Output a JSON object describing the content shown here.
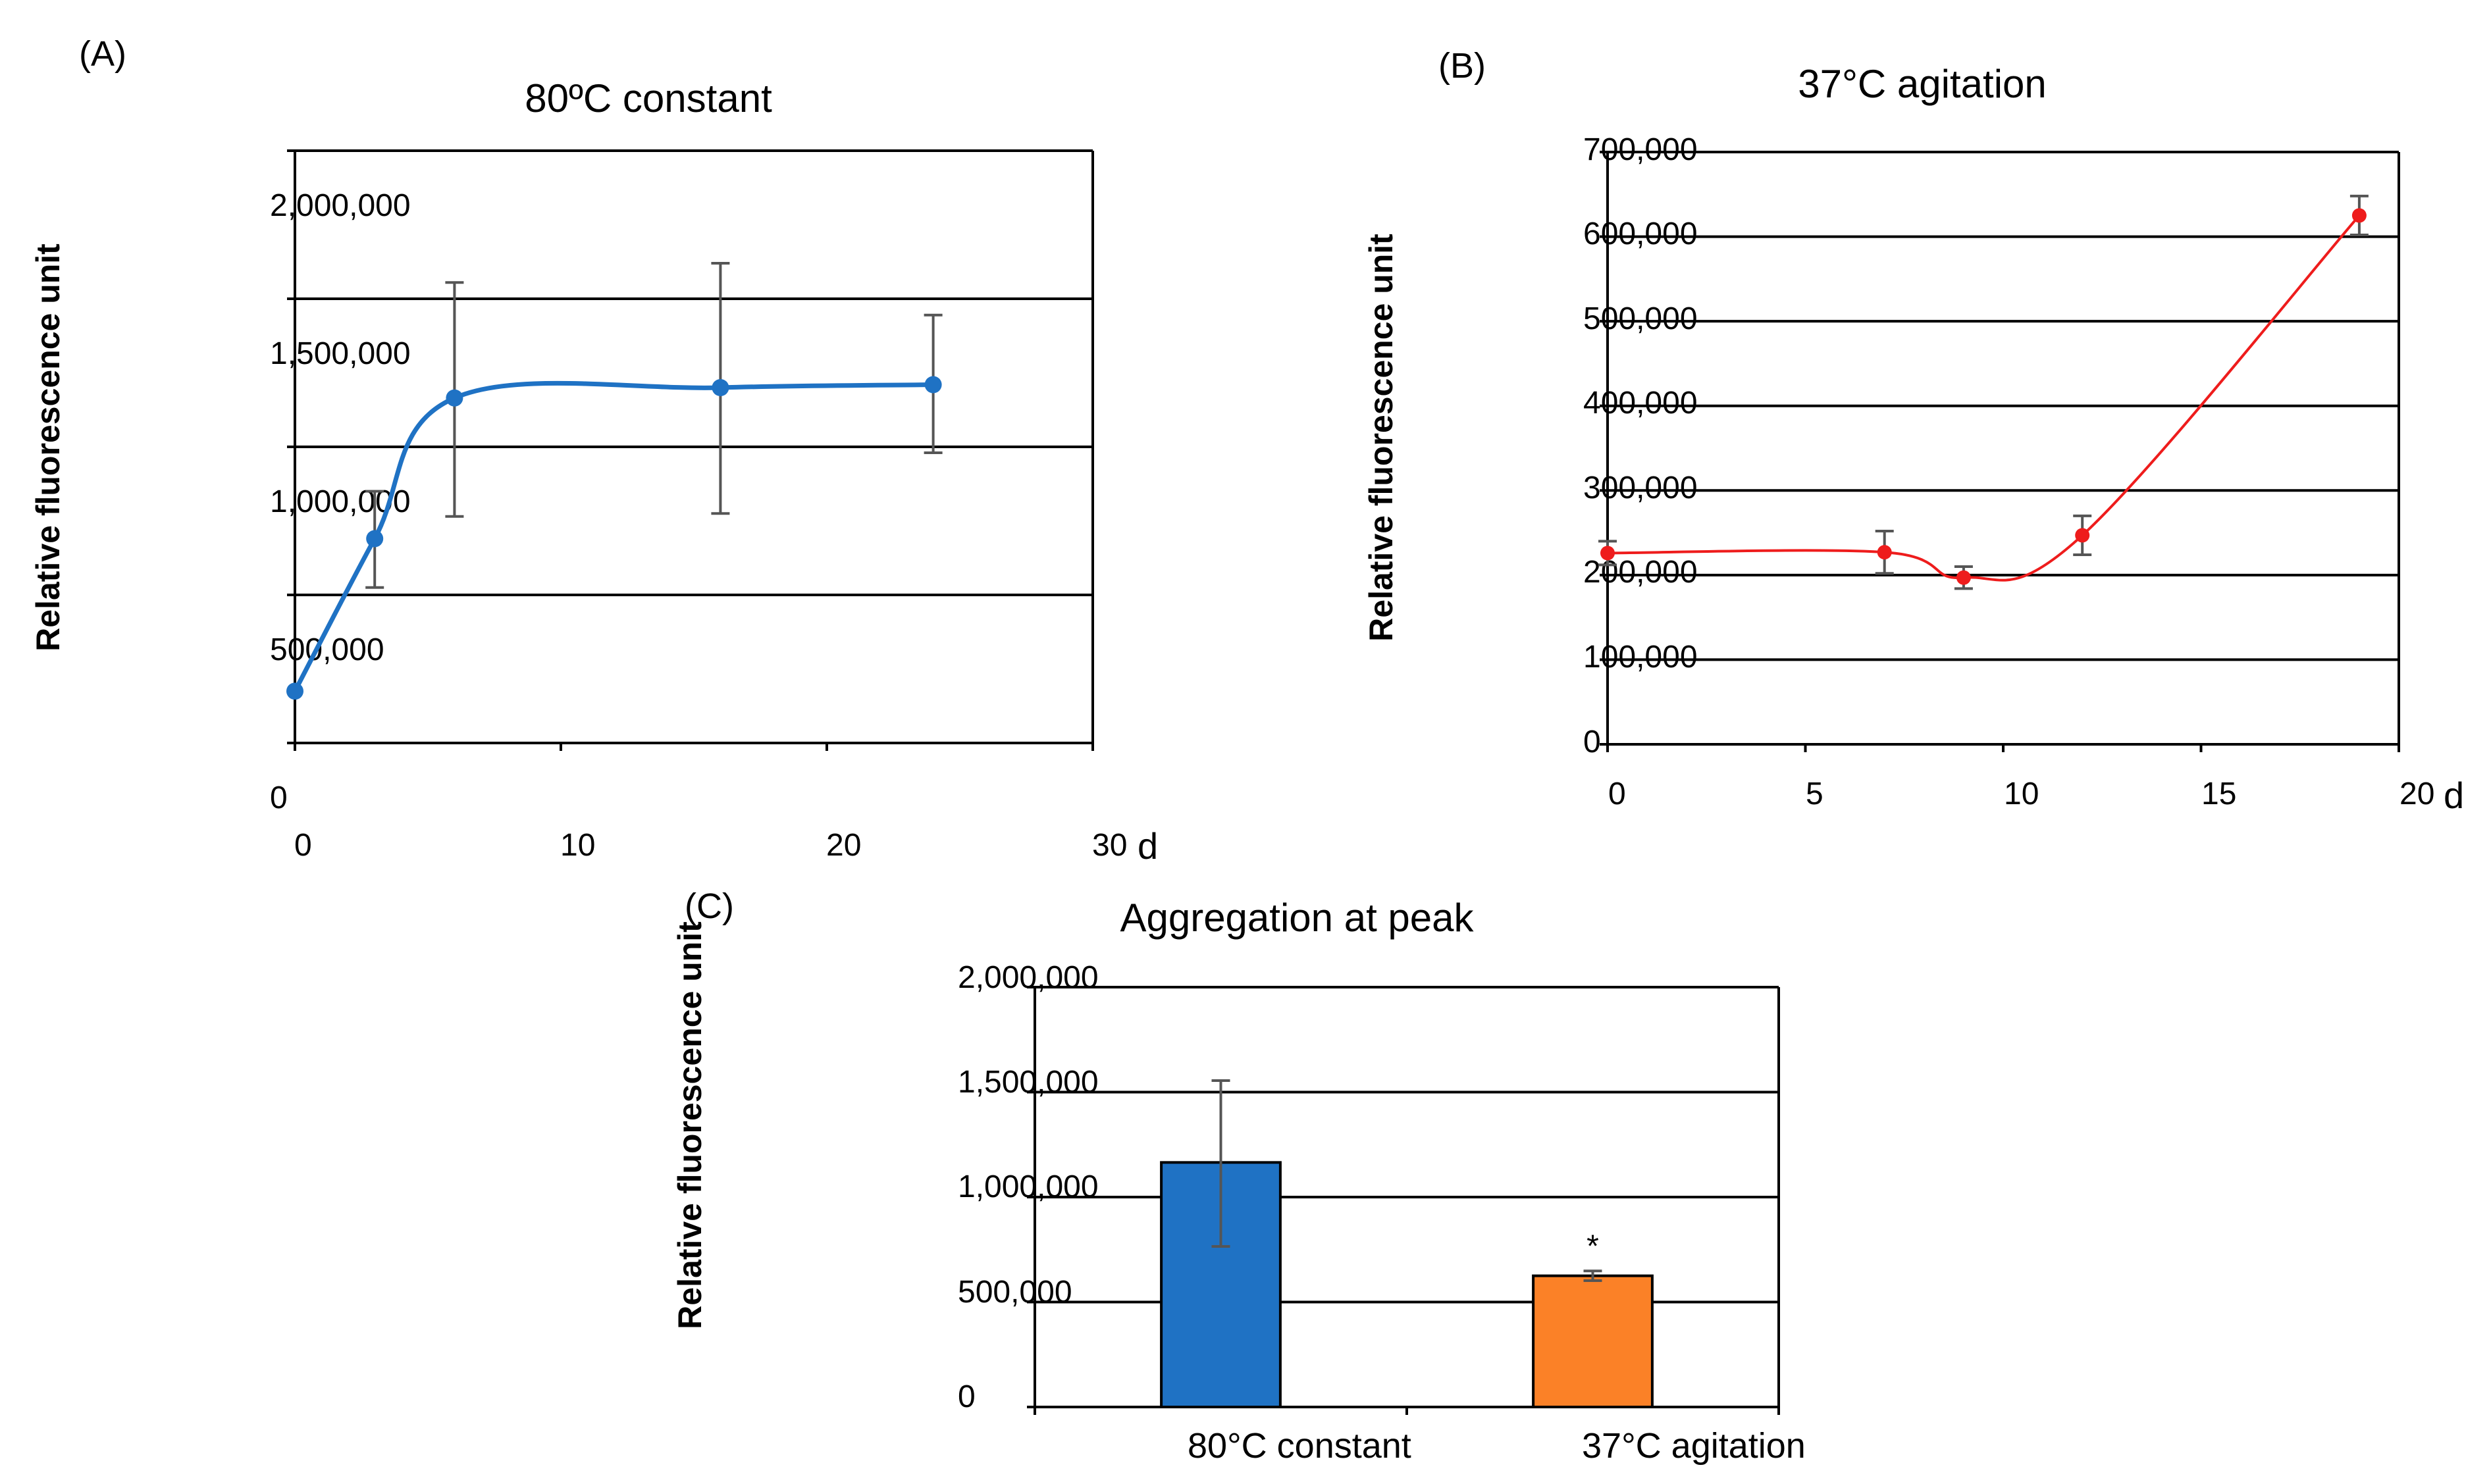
{
  "chart_data": [
    {
      "type": "line",
      "panel": "(A)",
      "title": "80ºC constant",
      "xlabel": "d",
      "ylabel": "Relative fluorescence unit",
      "xlim": [
        0,
        30
      ],
      "ylim": [
        0,
        2000000
      ],
      "x_ticks": [
        "0",
        "10",
        "20",
        "30"
      ],
      "y_ticks": [
        "0",
        "500,000",
        "1,000,000",
        "1,500,000",
        "2,000,000"
      ],
      "grid": "horizontal",
      "color": "#1f72c4",
      "series": [
        {
          "x": [
            0,
            3,
            6,
            16,
            24
          ],
          "y": [
            175000,
            690000,
            1165000,
            1200000,
            1210000
          ],
          "err_high": [
            175000,
            850000,
            1555000,
            1620000,
            1445000
          ],
          "err_low": [
            175000,
            525000,
            765000,
            775000,
            980000
          ]
        }
      ]
    },
    {
      "type": "line",
      "panel": "(B)",
      "title": "37°C agitation",
      "xlabel": "d",
      "ylabel": "Relative fluorescence unit",
      "xlim": [
        0,
        20
      ],
      "ylim": [
        0,
        700000
      ],
      "x_ticks": [
        "0",
        "5",
        "10",
        "15",
        "20"
      ],
      "y_ticks": [
        "0",
        "100,000",
        "200,000",
        "300,000",
        "400,000",
        "500,000",
        "600,000",
        "700,000"
      ],
      "grid": "horizontal",
      "color": "#ee1c1c",
      "series": [
        {
          "x": [
            0,
            7,
            9,
            12,
            19
          ],
          "y": [
            226000,
            227000,
            197000,
            247000,
            625000
          ],
          "err_high": [
            240000,
            252000,
            210000,
            270000,
            648000
          ],
          "err_low": [
            212000,
            202000,
            184000,
            224000,
            602000
          ]
        }
      ]
    },
    {
      "type": "bar",
      "panel": "(C)",
      "title": "Aggregation at peak",
      "ylabel": "Relative fluorescence unit",
      "ylim": [
        0,
        2000000
      ],
      "y_ticks": [
        "0",
        "500,000",
        "1,000,000",
        "1,500,000",
        "2,000,000"
      ],
      "grid": "horizontal",
      "categories": [
        "80°C constant",
        "37°C agitation"
      ],
      "values": [
        1165000,
        625000
      ],
      "err_high": [
        1555000,
        648000
      ],
      "err_low": [
        765000,
        602000
      ],
      "colors": [
        "#1f72c4",
        "#fb8127"
      ],
      "annotations": [
        "",
        "*"
      ]
    }
  ]
}
